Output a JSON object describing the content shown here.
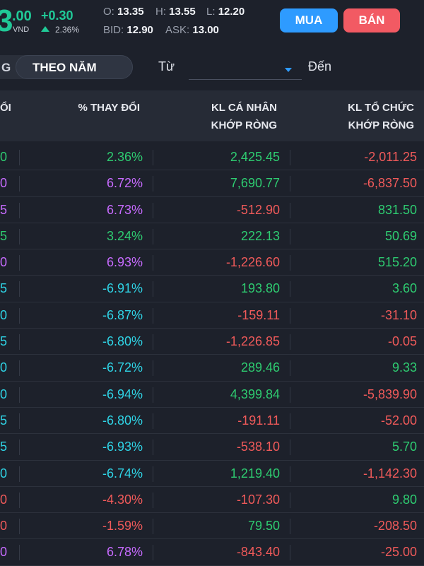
{
  "topbar": {
    "price_int": "3",
    "price_dec": ".00",
    "currency": "VND",
    "change": "+0.30",
    "change_pct": "2.36%",
    "open_label": "O:",
    "open": "13.35",
    "high_label": "H:",
    "high": "13.55",
    "low_label": "L:",
    "low": "12.20",
    "bid_label": "BID:",
    "bid": "12.90",
    "ask_label": "ASK:",
    "ask": "13.00",
    "buy_label": "MUA",
    "sell_label": "BÁN"
  },
  "filter": {
    "tab_left": "G",
    "tab_active": "THEO NĂM",
    "from_label": "Từ",
    "to_label": "Đến"
  },
  "table": {
    "headers": {
      "cut": "ỔI",
      "pct": "% THAY ĐỔI",
      "ind_line1": "KL CÁ NHÂN",
      "ind_line2": "KHỚP RÒNG",
      "org_line1": "KL TỔ CHỨC",
      "org_line2": "KHỚP RÒNG"
    },
    "rows": [
      {
        "cut": "0",
        "pct": "2.36%",
        "ind": "2,425.45",
        "org": "-2,011.25"
      },
      {
        "cut": "0",
        "pct": "6.72%",
        "ind": "7,690.77",
        "org": "-6,837.50"
      },
      {
        "cut": "5",
        "pct": "6.73%",
        "ind": "-512.90",
        "org": "831.50"
      },
      {
        "cut": "5",
        "pct": "3.24%",
        "ind": "222.13",
        "org": "50.69"
      },
      {
        "cut": "0",
        "pct": "6.93%",
        "ind": "-1,226.60",
        "org": "515.20"
      },
      {
        "cut": "5",
        "pct": "-6.91%",
        "ind": "193.80",
        "org": "3.60"
      },
      {
        "cut": "0",
        "pct": "-6.87%",
        "ind": "-159.11",
        "org": "-31.10"
      },
      {
        "cut": "5",
        "pct": "-6.80%",
        "ind": "-1,226.85",
        "org": "-0.05"
      },
      {
        "cut": "0",
        "pct": "-6.72%",
        "ind": "289.46",
        "org": "9.33"
      },
      {
        "cut": "0",
        "pct": "-6.94%",
        "ind": "4,399.84",
        "org": "-5,839.90"
      },
      {
        "cut": "5",
        "pct": "-6.80%",
        "ind": "-191.11",
        "org": "-52.00"
      },
      {
        "cut": "5",
        "pct": "-6.93%",
        "ind": "-538.10",
        "org": "5.70"
      },
      {
        "cut": "0",
        "pct": "-6.74%",
        "ind": "1,219.40",
        "org": "-1,142.30"
      },
      {
        "cut": "0",
        "pct": "-4.30%",
        "ind": "-107.30",
        "org": "9.80"
      },
      {
        "cut": "0",
        "pct": "-1.59%",
        "ind": "79.50",
        "org": "-208.50"
      },
      {
        "cut": "0",
        "pct": "6.78%",
        "ind": "-843.40",
        "org": "-25.00"
      }
    ]
  },
  "colors": {
    "up": "#2ecc71",
    "down": "#f05a5a",
    "ceiling": "#c76bff",
    "floor": "#2fd4e6",
    "buy": "#2e9bff",
    "sell": "#f25a63"
  }
}
